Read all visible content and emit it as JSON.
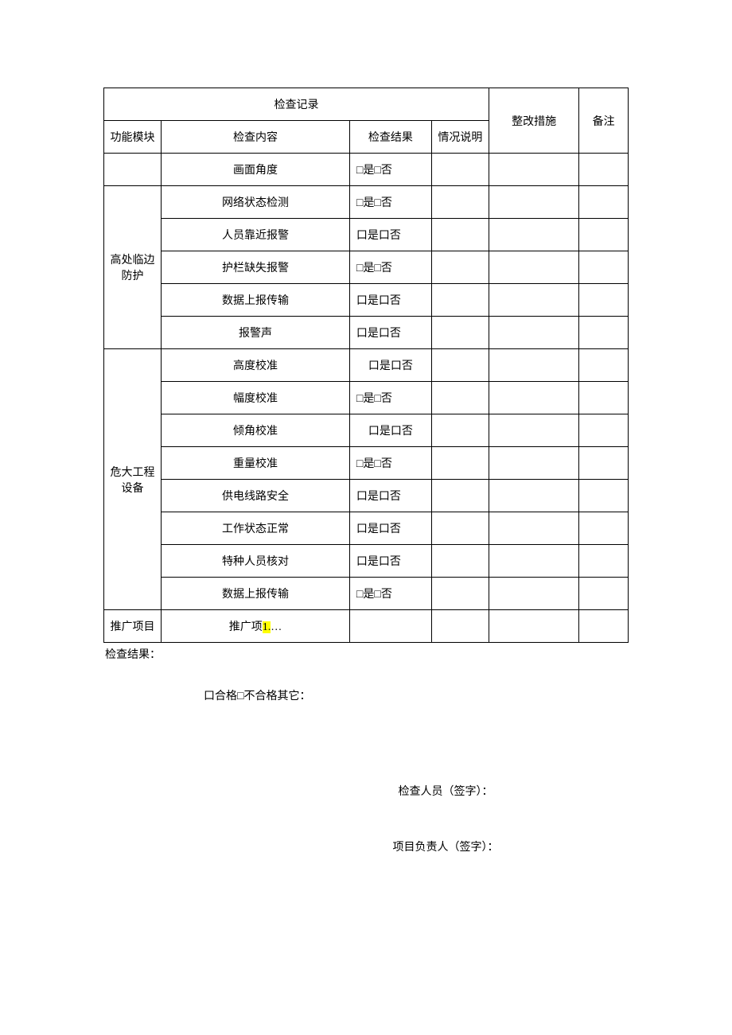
{
  "headers": {
    "inspection_record": "检查记录",
    "module": "功能模块",
    "content": "检查内容",
    "result": "检查结果",
    "desc": "情况说明",
    "measure": "整改措施",
    "remark": "备注"
  },
  "check_options": "□是□否",
  "check_options_alt": "口是口否",
  "modules": {
    "blank": "",
    "edge_protect": "高处临边防护",
    "danger_equip": "危大工程设备",
    "promo": "推广项目"
  },
  "rows": {
    "r1_content": "画面角度",
    "r2_content": "网络状态检测",
    "r3_content": "人员靠近报警",
    "r4_content": "护栏缺失报警",
    "r5_content": "数据上报传输",
    "r6_content": "报警声",
    "r7_content": "高度校准",
    "r8_content": "幅度校准",
    "r9_content": "倾角校准",
    "r10_content": "重量校准",
    "r11_content": "供电线路安全",
    "r12_content": "工作状态正常",
    "r13_content": "特种人员核对",
    "r14_content": "数据上报传输",
    "r15_content_pre": "推广项",
    "r15_content_hi": "1.",
    "r15_content_post": "…"
  },
  "footer": {
    "result_label": "检查结果：",
    "qualify": "口合格□不合格其它：",
    "inspector": "检查人员（签字）：",
    "manager": "项目负责人（签字）："
  }
}
